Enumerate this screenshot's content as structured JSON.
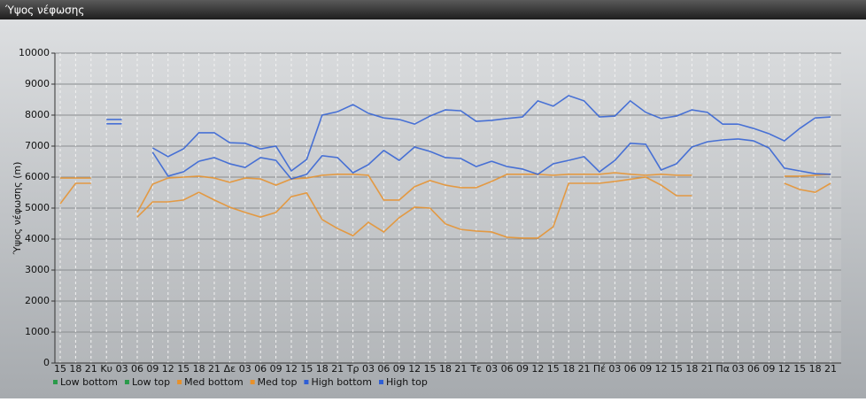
{
  "window_title": "Ύψος νέφωσης",
  "chart_data": {
    "type": "line",
    "y_label": "Ύψος νέφωσης (m)",
    "categories": [
      "15",
      "18",
      "21",
      "Κυ",
      "03",
      "06",
      "09",
      "12",
      "15",
      "18",
      "21",
      "Δε",
      "03",
      "06",
      "09",
      "12",
      "15",
      "18",
      "21",
      "Τρ",
      "03",
      "06",
      "09",
      "12",
      "15",
      "18",
      "21",
      "Τε",
      "03",
      "06",
      "09",
      "12",
      "15",
      "18",
      "21",
      "Πέ",
      "03",
      "06",
      "09",
      "12",
      "15",
      "18",
      "21",
      "Πα",
      "03",
      "06",
      "09",
      "12",
      "15",
      "18",
      "21"
    ],
    "ylim": [
      0,
      10000
    ],
    "yticks": [
      0,
      1000,
      2000,
      3000,
      4000,
      5000,
      6000,
      7000,
      8000,
      9000,
      10000
    ],
    "grid": true,
    "series": [
      {
        "name": "Low bottom",
        "color": "#2a9a4a",
        "values": [
          null,
          null,
          null,
          null,
          null,
          null,
          null,
          null,
          null,
          null,
          null,
          null,
          null,
          null,
          null,
          null,
          null,
          null,
          null,
          null,
          null,
          null,
          null,
          null,
          null,
          null,
          null,
          null,
          null,
          null,
          null,
          null,
          null,
          null,
          null,
          null,
          null,
          null,
          null,
          null,
          null,
          null,
          null,
          null,
          null,
          null,
          null,
          null,
          null,
          null,
          null
        ]
      },
      {
        "name": "Low top",
        "color": "#2a9a4a",
        "values": [
          null,
          null,
          null,
          null,
          null,
          null,
          null,
          null,
          null,
          null,
          null,
          null,
          null,
          null,
          null,
          null,
          null,
          null,
          null,
          null,
          null,
          null,
          null,
          null,
          null,
          null,
          null,
          null,
          null,
          null,
          null,
          null,
          null,
          null,
          null,
          null,
          null,
          null,
          null,
          null,
          null,
          null,
          null,
          null,
          null,
          null,
          null,
          null,
          null,
          null,
          null
        ]
      },
      {
        "name": "Med bottom",
        "color": "#e8912a",
        "values": [
          5140,
          5800,
          5800,
          null,
          null,
          4710,
          5200,
          5200,
          5260,
          5510,
          5260,
          5030,
          4860,
          4710,
          4860,
          5370,
          5490,
          4630,
          4340,
          4110,
          4540,
          4230,
          4690,
          5030,
          5000,
          4490,
          4310,
          4260,
          4230,
          4060,
          4030,
          4030,
          4400,
          5800,
          5800,
          5800,
          5860,
          5930,
          6000,
          5740,
          5400,
          5400,
          null,
          null,
          null,
          null,
          null,
          5800,
          5600,
          5510,
          5800
        ]
      },
      {
        "name": "Med top",
        "color": "#e8912a",
        "values": [
          5970,
          5970,
          5970,
          null,
          null,
          4860,
          5770,
          5970,
          6000,
          6030,
          5970,
          5830,
          5970,
          5940,
          5740,
          5940,
          5970,
          6060,
          6090,
          6090,
          6060,
          5260,
          5260,
          5690,
          5890,
          5740,
          5660,
          5660,
          5860,
          6090,
          6090,
          6090,
          6060,
          6090,
          6090,
          6090,
          6140,
          6090,
          6060,
          6090,
          6060,
          6060,
          null,
          null,
          null,
          null,
          null,
          6030,
          6030,
          6060,
          6090
        ]
      },
      {
        "name": "High bottom",
        "color": "#2f5fd5",
        "values": [
          null,
          null,
          null,
          7720,
          7720,
          null,
          6800,
          6030,
          6170,
          6510,
          6630,
          6430,
          6310,
          6630,
          6540,
          5940,
          6090,
          6690,
          6630,
          6140,
          6400,
          6860,
          6540,
          6970,
          6830,
          6630,
          6600,
          6340,
          6510,
          6340,
          6260,
          6090,
          6430,
          6540,
          6660,
          6170,
          6540,
          7090,
          7060,
          6230,
          6430,
          6970,
          7140,
          7200,
          7230,
          7170,
          6940,
          6290,
          6200,
          6110,
          6090
        ]
      },
      {
        "name": "High top",
        "color": "#2f5fd5",
        "values": [
          null,
          null,
          null,
          7860,
          7860,
          null,
          6940,
          6660,
          6910,
          7430,
          7430,
          7110,
          7090,
          6910,
          7000,
          6200,
          6570,
          8000,
          8110,
          8340,
          8060,
          7910,
          7860,
          7710,
          7970,
          8170,
          8140,
          7800,
          7830,
          7890,
          7940,
          8460,
          8290,
          8630,
          8460,
          7940,
          7970,
          8460,
          8090,
          7890,
          7970,
          8170,
          8090,
          7710,
          7710,
          7570,
          7400,
          7170,
          7570,
          7910,
          7940
        ]
      }
    ]
  }
}
